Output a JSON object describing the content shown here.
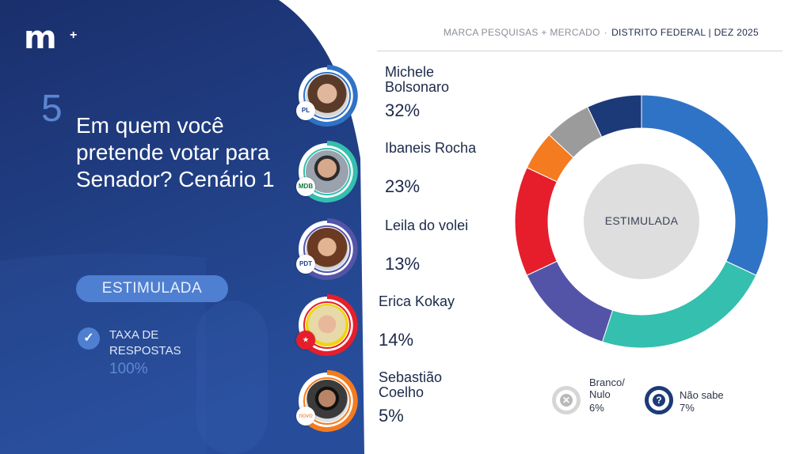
{
  "brand": {
    "logo_text": "m",
    "logo_plus": "+"
  },
  "header": {
    "source": "MARCA PESQUISAS + MERCADO",
    "separator": "·",
    "region_date": "DISTRITO FEDERAL |  DEZ 2025"
  },
  "question": {
    "number": "5",
    "text": "Em quem você pretende votar para Senador? Cenário 1"
  },
  "pill": {
    "label": "ESTIMULADA"
  },
  "taxa": {
    "label": "TAXA DE RESPOSTAS",
    "value": "100%"
  },
  "candidates": [
    {
      "name": "Michele Bolsonaro",
      "pct": "32%",
      "color": "#2f73c6",
      "party": "PL",
      "icon": "person-photo"
    },
    {
      "name": "Ibaneis Rocha",
      "pct": "23%",
      "color": "#34bfae",
      "party": "MDB",
      "icon": "person-photo"
    },
    {
      "name": "Leila do volei",
      "pct": "13%",
      "color": "#5354a8",
      "party": "PDT",
      "icon": "person-photo"
    },
    {
      "name": "Erica Kokay",
      "pct": "14%",
      "color": "#e61e2b",
      "party": "PT",
      "icon": "person-photo"
    },
    {
      "name": "Sebastião Coelho",
      "pct": "5%",
      "color": "#f47b20",
      "party": "novo",
      "icon": "person-photo"
    }
  ],
  "legend": {
    "branco": {
      "label": "Branco/ Nulo",
      "pct": "6%",
      "color": "#b9b9b9",
      "icon": "x-icon"
    },
    "naosabe": {
      "label": "Não sabe",
      "pct": "7%",
      "color": "#1d3a78",
      "icon": "question-icon"
    }
  },
  "chart_data": {
    "type": "pie",
    "center_label": "ESTIMULADA",
    "slices": [
      {
        "label": "Michele Bolsonaro",
        "value": 32,
        "color": "#2f73c6"
      },
      {
        "label": "Ibaneis Rocha",
        "value": 23,
        "color": "#34bfae"
      },
      {
        "label": "Leila do volei",
        "value": 13,
        "color": "#5354a8"
      },
      {
        "label": "Erica Kokay",
        "value": 14,
        "color": "#e61e2b"
      },
      {
        "label": "Sebastião Coelho",
        "value": 5,
        "color": "#f47b20"
      },
      {
        "label": "Branco/ Nulo",
        "value": 6,
        "color": "#9b9b9b"
      },
      {
        "label": "Não sabe",
        "value": 7,
        "color": "#1d3a78"
      }
    ]
  }
}
